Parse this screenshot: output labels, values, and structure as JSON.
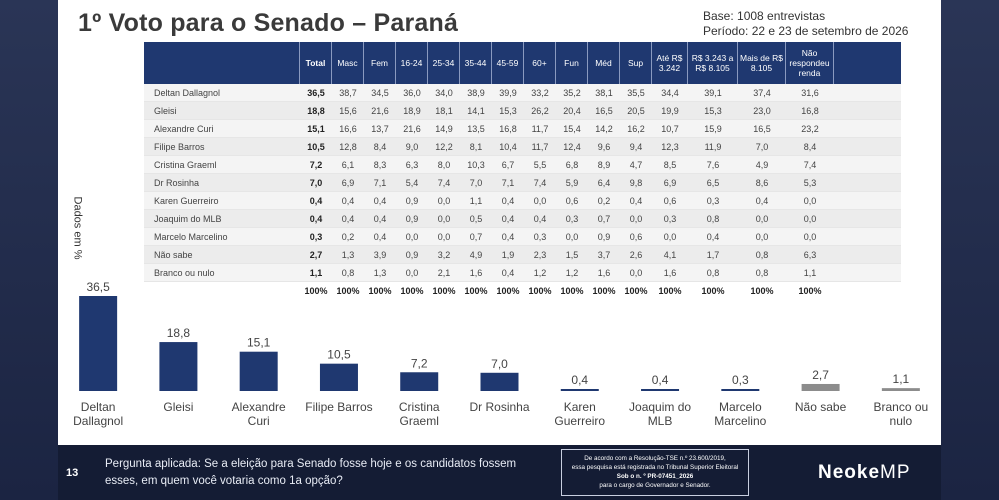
{
  "title": "1º Voto para o Senado – Paraná",
  "base": "Base: 1008 entrevistas",
  "periodo": "Período: 22 e 23 de setembro de 2026",
  "y_axis_label": "Dados em %",
  "table": {
    "headers": [
      "Total",
      "Masc",
      "Fem",
      "16-24",
      "25-34",
      "35-44",
      "45-59",
      "60+",
      "Fun",
      "Méd",
      "Sup",
      "Até R$ 3.242",
      "R$ 3.243 a R$ 8.105",
      "Mais de R$ 8.105",
      "Não respondeu renda"
    ],
    "rows": [
      {
        "name": "Deltan Dallagnol",
        "values": [
          "36,5",
          "38,7",
          "34,5",
          "36,0",
          "34,0",
          "38,9",
          "39,9",
          "33,2",
          "35,2",
          "38,1",
          "35,5",
          "34,4",
          "39,1",
          "37,4",
          "31,6"
        ]
      },
      {
        "name": "Gleisi",
        "values": [
          "18,8",
          "15,6",
          "21,6",
          "18,9",
          "18,1",
          "14,1",
          "15,3",
          "26,2",
          "20,4",
          "16,5",
          "20,5",
          "19,9",
          "15,3",
          "23,0",
          "16,8"
        ]
      },
      {
        "name": "Alexandre Curi",
        "values": [
          "15,1",
          "16,6",
          "13,7",
          "21,6",
          "14,9",
          "13,5",
          "16,8",
          "11,7",
          "15,4",
          "14,2",
          "16,2",
          "10,7",
          "15,9",
          "16,5",
          "23,2"
        ]
      },
      {
        "name": "Filipe Barros",
        "values": [
          "10,5",
          "12,8",
          "8,4",
          "9,0",
          "12,2",
          "8,1",
          "10,4",
          "11,7",
          "12,4",
          "9,6",
          "9,4",
          "12,3",
          "11,9",
          "7,0",
          "8,4"
        ]
      },
      {
        "name": "Cristina Graeml",
        "values": [
          "7,2",
          "6,1",
          "8,3",
          "6,3",
          "8,0",
          "10,3",
          "6,7",
          "5,5",
          "6,8",
          "8,9",
          "4,7",
          "8,5",
          "7,6",
          "4,9",
          "7,4"
        ]
      },
      {
        "name": "Dr Rosinha",
        "values": [
          "7,0",
          "6,9",
          "7,1",
          "5,4",
          "7,4",
          "7,0",
          "7,1",
          "7,4",
          "5,9",
          "6,4",
          "9,8",
          "6,9",
          "6,5",
          "8,6",
          "5,3"
        ]
      },
      {
        "name": "Karen Guerreiro",
        "values": [
          "0,4",
          "0,4",
          "0,4",
          "0,9",
          "0,0",
          "1,1",
          "0,4",
          "0,0",
          "0,6",
          "0,2",
          "0,4",
          "0,6",
          "0,3",
          "0,4",
          "0,0"
        ]
      },
      {
        "name": "Joaquim do MLB",
        "values": [
          "0,4",
          "0,4",
          "0,4",
          "0,9",
          "0,0",
          "0,5",
          "0,4",
          "0,4",
          "0,3",
          "0,7",
          "0,0",
          "0,3",
          "0,8",
          "0,0",
          "0,0"
        ]
      },
      {
        "name": "Marcelo Marcelino",
        "values": [
          "0,3",
          "0,2",
          "0,4",
          "0,0",
          "0,0",
          "0,7",
          "0,4",
          "0,3",
          "0,0",
          "0,9",
          "0,6",
          "0,0",
          "0,4",
          "0,0",
          "0,0"
        ]
      },
      {
        "name": "Não sabe",
        "values": [
          "2,7",
          "1,3",
          "3,9",
          "0,9",
          "3,2",
          "4,9",
          "1,9",
          "2,3",
          "1,5",
          "3,7",
          "2,6",
          "4,1",
          "1,7",
          "0,8",
          "6,3"
        ]
      },
      {
        "name": "Branco ou nulo",
        "values": [
          "1,1",
          "0,8",
          "1,3",
          "0,0",
          "2,1",
          "1,6",
          "0,4",
          "1,2",
          "1,2",
          "1,6",
          "0,0",
          "1,6",
          "0,8",
          "0,8",
          "1,1"
        ]
      }
    ],
    "totals": [
      "100%",
      "100%",
      "100%",
      "100%",
      "100%",
      "100%",
      "100%",
      "100%",
      "100%",
      "100%",
      "100%",
      "100%",
      "100%",
      "100%",
      "100%"
    ]
  },
  "chart_data": {
    "type": "bar",
    "categories": [
      "Deltan Dallagnol",
      "Gleisi",
      "Alexandre Curi",
      "Filipe Barros",
      "Cristina Graeml",
      "Dr Rosinha",
      "Karen Guerreiro",
      "Joaquim do MLB",
      "Marcelo Marcelino",
      "Não sabe",
      "Branco ou nulo"
    ],
    "values": [
      36.5,
      18.8,
      15.1,
      10.5,
      7.2,
      7.0,
      0.4,
      0.4,
      0.3,
      2.7,
      1.1
    ],
    "value_labels": [
      "36,5",
      "18,8",
      "15,1",
      "10,5",
      "7,2",
      "7,0",
      "0,4",
      "0,4",
      "0,3",
      "2,7",
      "1,1"
    ],
    "colors": [
      "#1f3870",
      "#1f3870",
      "#1f3870",
      "#1f3870",
      "#1f3870",
      "#1f3870",
      "#1f3870",
      "#1f3870",
      "#1f3870",
      "#8c8c8c",
      "#8c8c8c"
    ],
    "ylabel": "Dados em %",
    "grid": false
  },
  "footer": {
    "page_number": "13",
    "question": "Pergunta aplicada: Se a eleição para Senado fosse hoje e os candidatos fossem esses, em quem você votaria como 1a opção?",
    "tse_lines": [
      "De acordo com a Resolução-TSE n.º 23.600/2019,",
      "essa pesquisa está registrada no Tribunal Superior Eleitoral",
      "Sob o n. º PR-07451_2026",
      "para o cargo de Governador e Senador."
    ],
    "logo_a": "Neoke",
    "logo_b": "MP"
  },
  "colors": {
    "accent": "#1f3870",
    "muted_bar": "#8c8c8c",
    "footer_bg": "#141c34"
  }
}
